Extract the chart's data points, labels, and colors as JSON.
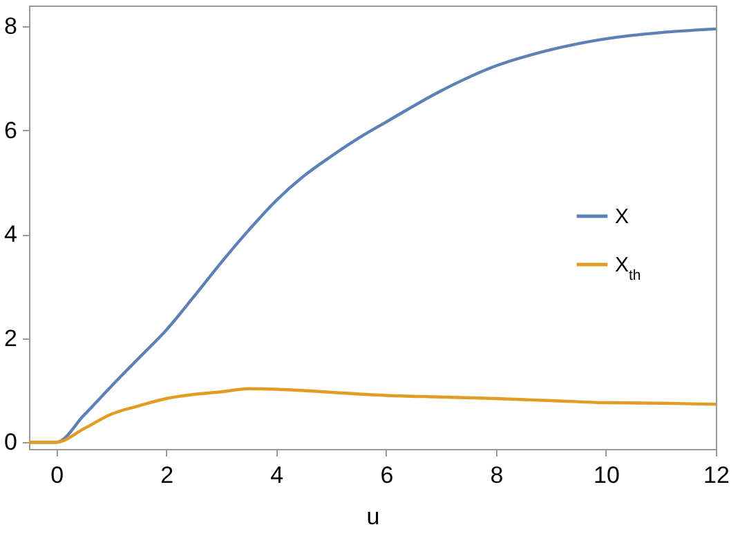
{
  "chart_data": {
    "type": "line",
    "xlabel": "u",
    "xlim": [
      -0.5,
      12
    ],
    "ylim": [
      -0.13,
      8.4
    ],
    "xticks": [
      0,
      2,
      4,
      6,
      8,
      10,
      12
    ],
    "yticks": [
      0,
      2,
      4,
      6,
      8
    ],
    "legend": "right",
    "grid": false,
    "series": [
      {
        "name": "X",
        "color": "#5e81b5",
        "x": [
          -0.5,
          0,
          0.5,
          1,
          1.5,
          2,
          2.5,
          3,
          3.5,
          4,
          4.5,
          5,
          5.5,
          6,
          7,
          8,
          9,
          10,
          11,
          12
        ],
        "values": [
          0,
          0,
          0.52,
          1.08,
          1.62,
          2.16,
          2.8,
          3.46,
          4.08,
          4.65,
          5.12,
          5.5,
          5.85,
          6.16,
          6.76,
          7.24,
          7.55,
          7.76,
          7.88,
          7.95
        ]
      },
      {
        "name": "X$_{th}$",
        "color": "#e19c24",
        "x": [
          -0.5,
          0,
          0.5,
          1,
          1.5,
          2,
          2.5,
          3,
          3.5,
          4,
          5,
          6,
          7,
          8,
          9,
          10,
          11,
          12
        ],
        "values": [
          0,
          0,
          0.26,
          0.54,
          0.7,
          0.84,
          0.92,
          0.97,
          1.03,
          1.02,
          0.96,
          0.9,
          0.87,
          0.84,
          0.8,
          0.76,
          0.75,
          0.73
        ]
      }
    ]
  }
}
